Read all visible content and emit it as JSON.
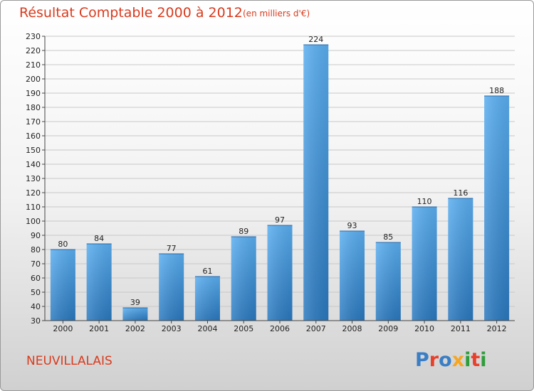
{
  "header": {
    "title": "Résultat Comptable 2000 à 2012",
    "subtitle": "(en milliers d'€)"
  },
  "footer": {
    "commune": "NEUVILLALAIS",
    "logo_text": "Proxiti",
    "logo_colors": [
      "#3a7ec5",
      "#e8412b",
      "#3a7ec5",
      "#f5a623",
      "#2e9e3a",
      "#e8412b",
      "#2e9e3a"
    ]
  },
  "chart_data": {
    "type": "bar",
    "categories": [
      "2000",
      "2001",
      "2002",
      "2003",
      "2004",
      "2005",
      "2006",
      "2007",
      "2008",
      "2009",
      "2010",
      "2011",
      "2012"
    ],
    "values": [
      80,
      84,
      39,
      77,
      61,
      89,
      97,
      224,
      93,
      85,
      110,
      116,
      188
    ],
    "ylim": [
      30,
      230
    ],
    "yticks": [
      30,
      40,
      50,
      60,
      70,
      80,
      90,
      100,
      110,
      120,
      130,
      140,
      150,
      160,
      170,
      180,
      190,
      200,
      210,
      220,
      230
    ],
    "grid": true,
    "bar_color": "#4a9ee0"
  }
}
